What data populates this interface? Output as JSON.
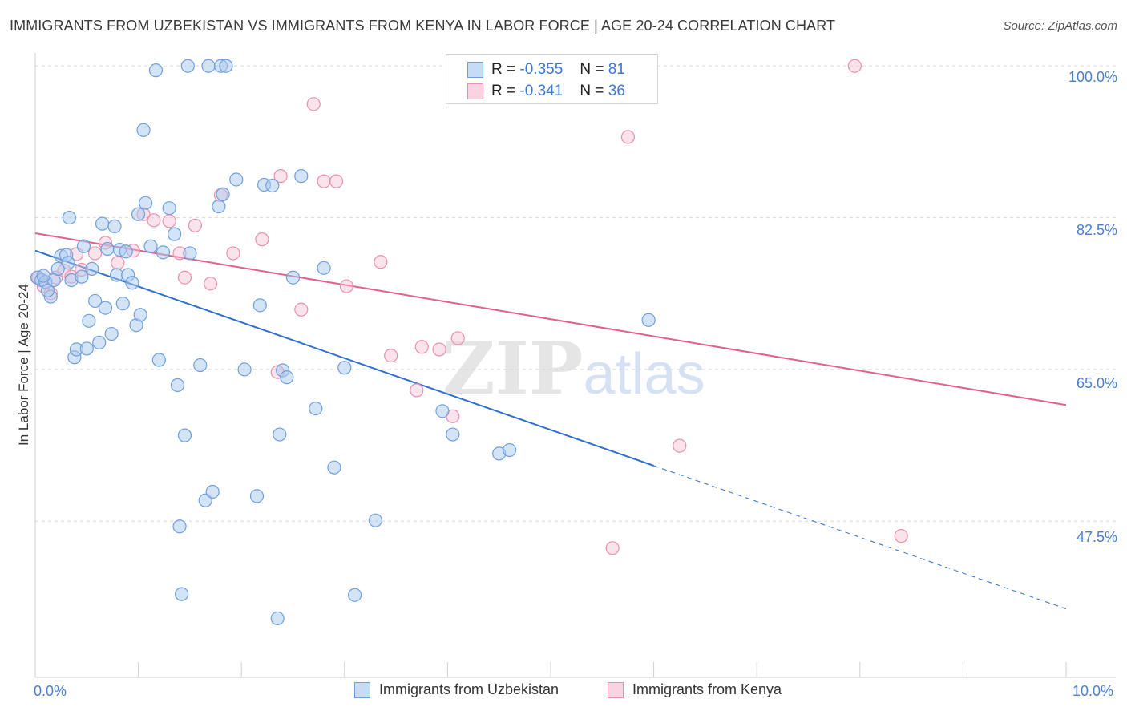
{
  "header": {
    "title": "IMMIGRANTS FROM UZBEKISTAN VS IMMIGRANTS FROM KENYA IN LABOR FORCE | AGE 20-24 CORRELATION CHART",
    "source": "Source: ZipAtlas.com"
  },
  "watermark": {
    "zip": "ZIP",
    "atlas": "atlas"
  },
  "legend": {
    "uzbekistan": {
      "r_label": "R =",
      "r_value": "-0.355",
      "n_label": "N =",
      "n_value": "81"
    },
    "kenya": {
      "r_label": "R =",
      "r_value": "-0.341",
      "n_label": "N =",
      "n_value": "36"
    }
  },
  "colors": {
    "uzbekistan_fill": "#aac9f0",
    "uzbekistan_stroke": "#6f9fdc",
    "uzbekistan_line": "#2f6fd0",
    "kenya_fill": "#f6c0d2",
    "kenya_stroke": "#e890ae",
    "kenya_line": "#e0608e",
    "tick_label": "#4a7fd0",
    "grid": "#d8d8d8"
  },
  "chart_data": {
    "type": "scatter",
    "title": "IMMIGRANTS FROM UZBEKISTAN VS IMMIGRANTS FROM KENYA IN LABOR FORCE | AGE 20-24 CORRELATION CHART",
    "xlabel": "",
    "ylabel": "In Labor Force | Age 20-24",
    "xlim": [
      0,
      10
    ],
    "ylim": [
      29.5,
      101.5
    ],
    "x_tick_labels": [
      "0.0%",
      "10.0%"
    ],
    "y_ticks": [
      47.5,
      65.0,
      82.5,
      100.0
    ],
    "y_tick_labels": [
      "47.5%",
      "65.0%",
      "82.5%",
      "100.0%"
    ],
    "grid": true,
    "legend_position": "bottom",
    "series": [
      {
        "name": "Immigrants from Uzbekistan",
        "r": -0.355,
        "n": 81,
        "trend": {
          "x0": 0.0,
          "y0": 78.7,
          "x1": 6.0,
          "y1": 53.9,
          "dash_x1": 10.0,
          "dash_y1": 37.4
        },
        "points": [
          [
            0.02,
            75.6
          ],
          [
            0.06,
            75.3
          ],
          [
            0.1,
            75.1
          ],
          [
            0.15,
            73.4
          ],
          [
            0.18,
            75.3
          ],
          [
            0.25,
            78.1
          ],
          [
            0.22,
            76.6
          ],
          [
            0.3,
            78.2
          ],
          [
            0.35,
            75.3
          ],
          [
            0.32,
            77.3
          ],
          [
            0.33,
            82.5
          ],
          [
            0.38,
            66.4
          ],
          [
            0.4,
            67.3
          ],
          [
            0.47,
            79.2
          ],
          [
            0.5,
            67.4
          ],
          [
            0.52,
            70.6
          ],
          [
            0.55,
            76.6
          ],
          [
            0.58,
            72.9
          ],
          [
            0.62,
            68.1
          ],
          [
            0.65,
            81.8
          ],
          [
            0.68,
            72.1
          ],
          [
            0.7,
            78.9
          ],
          [
            0.74,
            69.1
          ],
          [
            0.77,
            81.5
          ],
          [
            0.79,
            75.9
          ],
          [
            0.82,
            78.8
          ],
          [
            0.85,
            72.6
          ],
          [
            0.88,
            78.6
          ],
          [
            0.9,
            75.9
          ],
          [
            0.94,
            75.0
          ],
          [
            0.98,
            70.1
          ],
          [
            1.0,
            82.9
          ],
          [
            1.02,
            71.3
          ],
          [
            1.05,
            92.6
          ],
          [
            1.07,
            84.2
          ],
          [
            1.12,
            79.2
          ],
          [
            1.17,
            99.5
          ],
          [
            1.2,
            66.1
          ],
          [
            1.24,
            78.5
          ],
          [
            1.3,
            83.6
          ],
          [
            1.35,
            80.6
          ],
          [
            1.38,
            63.2
          ],
          [
            1.4,
            46.9
          ],
          [
            1.42,
            39.1
          ],
          [
            1.45,
            57.4
          ],
          [
            1.5,
            78.4
          ],
          [
            1.6,
            65.5
          ],
          [
            1.65,
            49.9
          ],
          [
            1.72,
            50.9
          ],
          [
            1.78,
            83.8
          ],
          [
            1.48,
            100.0
          ],
          [
            1.68,
            100.0
          ],
          [
            1.8,
            100.0
          ],
          [
            1.85,
            100.0
          ],
          [
            1.82,
            85.2
          ],
          [
            1.95,
            86.9
          ],
          [
            2.03,
            65.0
          ],
          [
            2.15,
            50.4
          ],
          [
            2.18,
            72.4
          ],
          [
            2.22,
            86.3
          ],
          [
            2.3,
            86.2
          ],
          [
            2.35,
            36.3
          ],
          [
            2.37,
            57.5
          ],
          [
            2.4,
            64.9
          ],
          [
            2.44,
            64.1
          ],
          [
            2.5,
            75.6
          ],
          [
            2.58,
            87.3
          ],
          [
            2.72,
            60.5
          ],
          [
            2.8,
            76.7
          ],
          [
            2.9,
            53.7
          ],
          [
            3.0,
            65.2
          ],
          [
            3.1,
            39.0
          ],
          [
            3.3,
            47.6
          ],
          [
            3.95,
            60.2
          ],
          [
            4.05,
            57.5
          ],
          [
            4.5,
            55.3
          ],
          [
            4.6,
            55.7
          ],
          [
            5.95,
            70.7
          ],
          [
            0.08,
            75.8
          ],
          [
            0.12,
            74.1
          ],
          [
            0.45,
            75.7
          ]
        ]
      },
      {
        "name": "Immigrants from Kenya",
        "r": -0.341,
        "n": 36,
        "trend": {
          "x0": 0.0,
          "y0": 80.7,
          "x1": 10.0,
          "y1": 60.9
        },
        "points": [
          [
            0.03,
            75.6
          ],
          [
            0.08,
            74.6
          ],
          [
            0.15,
            73.8
          ],
          [
            0.2,
            75.6
          ],
          [
            0.28,
            76.4
          ],
          [
            0.35,
            75.7
          ],
          [
            0.4,
            78.3
          ],
          [
            0.45,
            76.5
          ],
          [
            0.58,
            78.4
          ],
          [
            0.68,
            79.6
          ],
          [
            0.8,
            77.3
          ],
          [
            0.95,
            78.7
          ],
          [
            1.05,
            82.9
          ],
          [
            1.15,
            82.2
          ],
          [
            1.3,
            82.1
          ],
          [
            1.4,
            78.4
          ],
          [
            1.45,
            75.6
          ],
          [
            1.55,
            81.6
          ],
          [
            1.7,
            74.9
          ],
          [
            1.92,
            78.4
          ],
          [
            1.8,
            85.1
          ],
          [
            2.2,
            80.0
          ],
          [
            2.35,
            64.7
          ],
          [
            2.38,
            87.3
          ],
          [
            2.58,
            71.9
          ],
          [
            2.7,
            95.6
          ],
          [
            2.8,
            86.7
          ],
          [
            2.92,
            86.7
          ],
          [
            3.02,
            74.6
          ],
          [
            3.35,
            77.4
          ],
          [
            3.45,
            66.6
          ],
          [
            3.7,
            62.6
          ],
          [
            3.75,
            67.6
          ],
          [
            3.92,
            67.3
          ],
          [
            4.1,
            68.6
          ],
          [
            4.05,
            59.6
          ]
        ]
      }
    ],
    "extra_points_kenya": [
      [
        5.75,
        91.8
      ],
      [
        6.25,
        56.2
      ],
      [
        7.95,
        100.0
      ],
      [
        5.6,
        44.4
      ],
      [
        8.4,
        45.8
      ]
    ]
  },
  "axes": {
    "x_left": "0.0%",
    "x_right": "10.0%",
    "y_labels": [
      "100.0%",
      "82.5%",
      "65.0%",
      "47.5%"
    ]
  },
  "bottom_legend": {
    "uzbekistan": "Immigrants from Uzbekistan",
    "kenya": "Immigrants from Kenya"
  }
}
